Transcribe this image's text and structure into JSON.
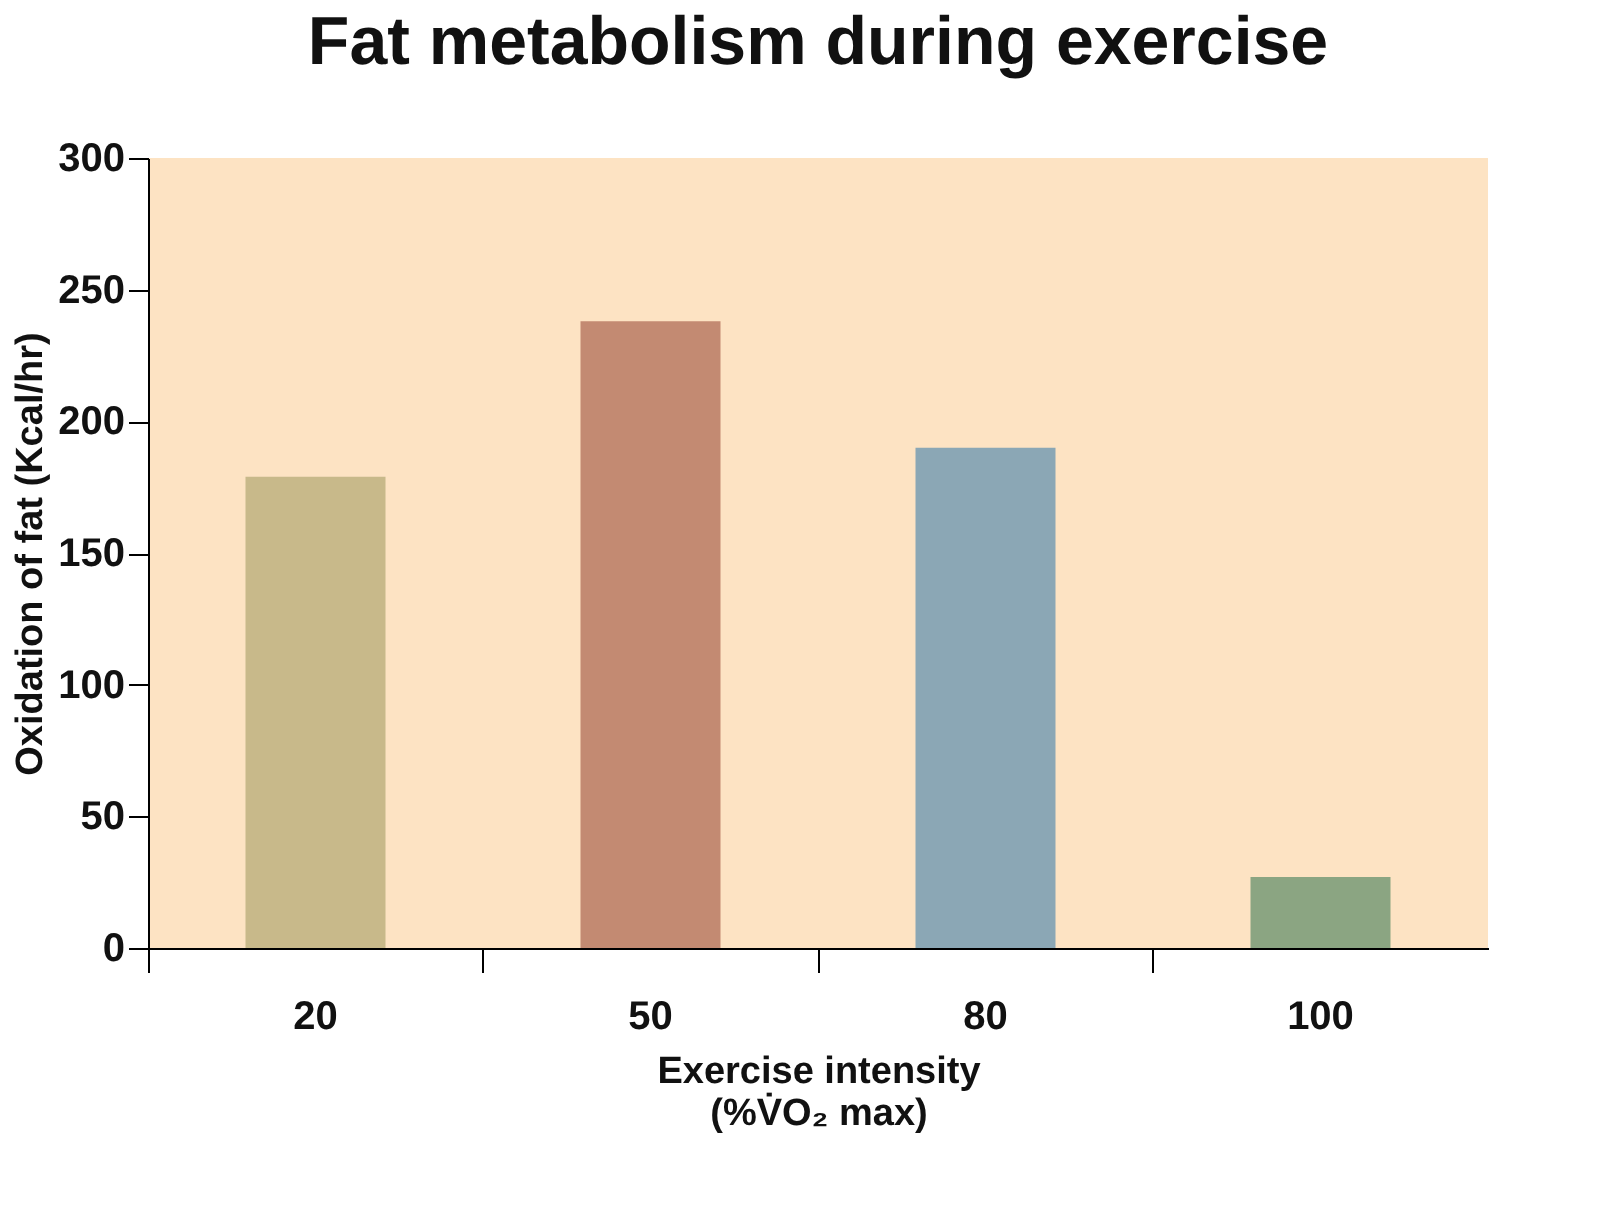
{
  "chart_data": {
    "type": "bar",
    "title": "Fat metabolism during exercise",
    "categories": [
      "20",
      "50",
      "80",
      "100"
    ],
    "values": [
      179,
      238,
      190,
      27
    ],
    "colors": [
      "#c8b98a",
      "#c38a72",
      "#8ba7b5",
      "#8ba582"
    ],
    "xlabel": "Exercise intensity\n(%V̇O₂ max)",
    "ylabel": "Oxidation of fat (Kcal/hr)",
    "ylim": [
      0,
      300
    ],
    "yticks": [
      0,
      50,
      100,
      150,
      200,
      250,
      300
    ],
    "grid": false
  }
}
